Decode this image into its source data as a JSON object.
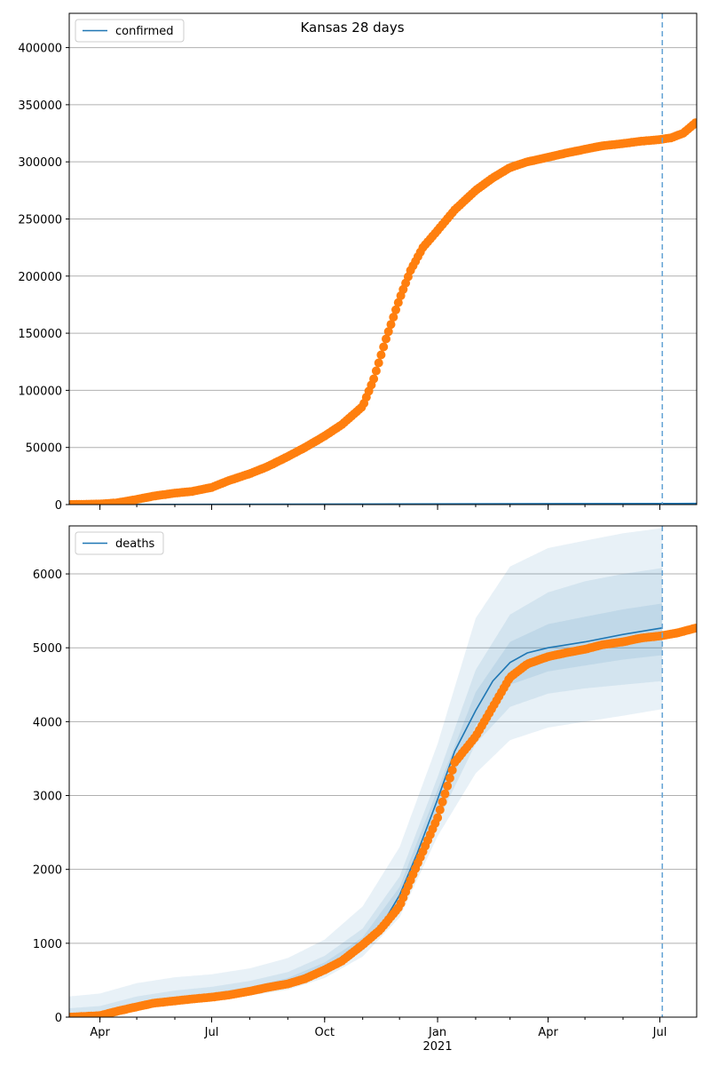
{
  "chart_data": {
    "type": "line",
    "title": "Kansas 28 days",
    "x_axis": {
      "type": "date",
      "range": [
        "2020-03-07",
        "2021-07-31"
      ],
      "tick_labels": [
        {
          "date": "2020-04-01",
          "label": "Apr"
        },
        {
          "date": "2020-07-01",
          "label": "Jul"
        },
        {
          "date": "2020-10-01",
          "label": "Oct"
        },
        {
          "date": "2021-01-01",
          "label": "Jan",
          "sublabel": "2021"
        },
        {
          "date": "2021-04-01",
          "label": "Apr"
        },
        {
          "date": "2021-07-01",
          "label": "Jul"
        }
      ],
      "minor_ticks": "monthly"
    },
    "forecast_start": "2021-07-03",
    "panels": [
      {
        "name": "confirmed-panel",
        "legend": "confirmed",
        "legend_position": "upper-left",
        "ylim": [
          0,
          430000
        ],
        "y_ticks": [
          0,
          50000,
          100000,
          150000,
          200000,
          250000,
          300000,
          350000,
          400000
        ],
        "grid": "y",
        "model": [
          [
            "2020-03-07",
            0
          ],
          [
            "2021-07-31",
            1000
          ]
        ],
        "observed": [
          [
            "2020-03-07",
            0
          ],
          [
            "2020-04-01",
            500
          ],
          [
            "2020-04-15",
            1500
          ],
          [
            "2020-05-01",
            4500
          ],
          [
            "2020-05-15",
            7500
          ],
          [
            "2020-06-01",
            10000
          ],
          [
            "2020-06-15",
            11500
          ],
          [
            "2020-07-01",
            15000
          ],
          [
            "2020-07-15",
            21000
          ],
          [
            "2020-08-01",
            27000
          ],
          [
            "2020-08-15",
            33000
          ],
          [
            "2020-09-01",
            42000
          ],
          [
            "2020-09-15",
            50000
          ],
          [
            "2020-10-01",
            60000
          ],
          [
            "2020-10-15",
            70000
          ],
          [
            "2020-11-01",
            86000
          ],
          [
            "2020-11-10",
            110000
          ],
          [
            "2020-11-20",
            145000
          ],
          [
            "2020-12-01",
            180000
          ],
          [
            "2020-12-10",
            205000
          ],
          [
            "2020-12-20",
            225000
          ],
          [
            "2021-01-01",
            240000
          ],
          [
            "2021-01-15",
            258000
          ],
          [
            "2021-02-01",
            275000
          ],
          [
            "2021-02-15",
            286000
          ],
          [
            "2021-03-01",
            295000
          ],
          [
            "2021-03-15",
            300000
          ],
          [
            "2021-04-01",
            304000
          ],
          [
            "2021-04-15",
            307500
          ],
          [
            "2021-05-01",
            311000
          ],
          [
            "2021-05-15",
            314000
          ],
          [
            "2021-06-01",
            316000
          ],
          [
            "2021-06-15",
            318000
          ],
          [
            "2021-07-01",
            319500
          ],
          [
            "2021-07-10",
            321000
          ],
          [
            "2021-07-20",
            325000
          ],
          [
            "2021-07-31",
            335000
          ]
        ]
      },
      {
        "name": "deaths-panel",
        "legend": "deaths",
        "legend_position": "upper-left",
        "ylim": [
          0,
          6650
        ],
        "y_ticks": [
          0,
          1000,
          2000,
          3000,
          4000,
          5000,
          6000
        ],
        "grid": "y",
        "model": [
          [
            "2020-03-07",
            20
          ],
          [
            "2020-04-01",
            40
          ],
          [
            "2020-04-15",
            100
          ],
          [
            "2020-05-01",
            160
          ],
          [
            "2020-06-01",
            230
          ],
          [
            "2020-07-01",
            290
          ],
          [
            "2020-08-01",
            370
          ],
          [
            "2020-09-01",
            480
          ],
          [
            "2020-10-01",
            680
          ],
          [
            "2020-10-20",
            850
          ],
          [
            "2020-11-01",
            1000
          ],
          [
            "2020-11-15",
            1200
          ],
          [
            "2020-12-01",
            1650
          ],
          [
            "2020-12-15",
            2200
          ],
          [
            "2021-01-01",
            2950
          ],
          [
            "2021-01-15",
            3600
          ],
          [
            "2021-02-01",
            4150
          ],
          [
            "2021-02-15",
            4550
          ],
          [
            "2021-03-01",
            4800
          ],
          [
            "2021-03-15",
            4930
          ],
          [
            "2021-04-01",
            5000
          ],
          [
            "2021-05-01",
            5080
          ],
          [
            "2021-06-01",
            5180
          ],
          [
            "2021-07-03",
            5270
          ]
        ],
        "bands": [
          {
            "level": "outer",
            "lower": [
              [
                "2020-03-07",
                0
              ],
              [
                "2020-05-01",
                110
              ],
              [
                "2020-07-01",
                220
              ],
              [
                "2020-09-01",
                370
              ],
              [
                "2020-10-01",
                530
              ],
              [
                "2020-11-01",
                820
              ],
              [
                "2020-12-01",
                1350
              ],
              [
                "2021-01-01",
                2450
              ],
              [
                "2021-02-01",
                3300
              ],
              [
                "2021-03-01",
                3750
              ],
              [
                "2021-04-01",
                3920
              ],
              [
                "2021-05-01",
                4000
              ],
              [
                "2021-06-01",
                4080
              ],
              [
                "2021-07-03",
                4170
              ]
            ],
            "upper": [
              [
                "2020-03-07",
                280
              ],
              [
                "2020-04-01",
                320
              ],
              [
                "2020-05-01",
                460
              ],
              [
                "2020-06-01",
                540
              ],
              [
                "2020-07-01",
                580
              ],
              [
                "2020-08-01",
                660
              ],
              [
                "2020-09-01",
                800
              ],
              [
                "2020-10-01",
                1050
              ],
              [
                "2020-11-01",
                1500
              ],
              [
                "2020-12-01",
                2300
              ],
              [
                "2021-01-01",
                3700
              ],
              [
                "2021-02-01",
                5400
              ],
              [
                "2021-03-01",
                6100
              ],
              [
                "2021-04-01",
                6350
              ],
              [
                "2021-05-01",
                6450
              ],
              [
                "2021-06-01",
                6550
              ],
              [
                "2021-07-03",
                6620
              ]
            ]
          },
          {
            "level": "middle",
            "lower": [
              [
                "2020-03-07",
                10
              ],
              [
                "2020-05-01",
                130
              ],
              [
                "2020-07-01",
                250
              ],
              [
                "2020-09-01",
                420
              ],
              [
                "2020-10-01",
                600
              ],
              [
                "2020-11-01",
                900
              ],
              [
                "2020-12-01",
                1480
              ],
              [
                "2021-01-01",
                2650
              ],
              [
                "2021-02-01",
                3700
              ],
              [
                "2021-03-01",
                4200
              ],
              [
                "2021-04-01",
                4380
              ],
              [
                "2021-05-01",
                4450
              ],
              [
                "2021-06-01",
                4500
              ],
              [
                "2021-07-03",
                4550
              ]
            ],
            "upper": [
              [
                "2020-03-07",
                120
              ],
              [
                "2020-04-01",
                150
              ],
              [
                "2020-05-01",
                280
              ],
              [
                "2020-06-01",
                360
              ],
              [
                "2020-07-01",
                410
              ],
              [
                "2020-08-01",
                490
              ],
              [
                "2020-09-01",
                610
              ],
              [
                "2020-10-01",
                830
              ],
              [
                "2020-11-01",
                1200
              ],
              [
                "2020-12-01",
                1900
              ],
              [
                "2021-01-01",
                3250
              ],
              [
                "2021-02-01",
                4700
              ],
              [
                "2021-03-01",
                5450
              ],
              [
                "2021-04-01",
                5750
              ],
              [
                "2021-05-01",
                5900
              ],
              [
                "2021-06-01",
                6000
              ],
              [
                "2021-07-03",
                6080
              ]
            ]
          },
          {
            "level": "inner",
            "lower": [
              [
                "2020-03-07",
                15
              ],
              [
                "2020-05-01",
                145
              ],
              [
                "2020-07-01",
                270
              ],
              [
                "2020-09-01",
                450
              ],
              [
                "2020-10-01",
                640
              ],
              [
                "2020-11-01",
                950
              ],
              [
                "2020-12-01",
                1560
              ],
              [
                "2021-01-01",
                2800
              ],
              [
                "2021-02-01",
                3950
              ],
              [
                "2021-03-01",
                4500
              ],
              [
                "2021-04-01",
                4680
              ],
              [
                "2021-05-01",
                4760
              ],
              [
                "2021-06-01",
                4840
              ],
              [
                "2021-07-03",
                4900
              ]
            ],
            "upper": [
              [
                "2020-03-07",
                40
              ],
              [
                "2020-04-01",
                70
              ],
              [
                "2020-05-01",
                190
              ],
              [
                "2020-06-01",
                270
              ],
              [
                "2020-07-01",
                330
              ],
              [
                "2020-08-01",
                410
              ],
              [
                "2020-09-01",
                530
              ],
              [
                "2020-10-01",
                740
              ],
              [
                "2020-11-01",
                1080
              ],
              [
                "2020-12-01",
                1760
              ],
              [
                "2021-01-01",
                3080
              ],
              [
                "2021-02-01",
                4400
              ],
              [
                "2021-03-01",
                5080
              ],
              [
                "2021-04-01",
                5320
              ],
              [
                "2021-05-01",
                5420
              ],
              [
                "2021-06-01",
                5520
              ],
              [
                "2021-07-03",
                5600
              ]
            ]
          }
        ],
        "observed": [
          [
            "2020-03-07",
            0
          ],
          [
            "2020-04-01",
            20
          ],
          [
            "2020-04-15",
            80
          ],
          [
            "2020-05-01",
            140
          ],
          [
            "2020-05-15",
            190
          ],
          [
            "2020-06-01",
            220
          ],
          [
            "2020-06-15",
            245
          ],
          [
            "2020-07-01",
            270
          ],
          [
            "2020-07-15",
            300
          ],
          [
            "2020-08-01",
            350
          ],
          [
            "2020-08-15",
            400
          ],
          [
            "2020-09-01",
            450
          ],
          [
            "2020-09-15",
            520
          ],
          [
            "2020-10-01",
            640
          ],
          [
            "2020-10-15",
            760
          ],
          [
            "2020-11-01",
            980
          ],
          [
            "2020-11-15",
            1180
          ],
          [
            "2020-12-01",
            1500
          ],
          [
            "2020-12-15",
            2050
          ],
          [
            "2021-01-01",
            2700
          ],
          [
            "2021-01-15",
            3450
          ],
          [
            "2021-02-01",
            3800
          ],
          [
            "2021-02-15",
            4200
          ],
          [
            "2021-03-01",
            4600
          ],
          [
            "2021-03-15",
            4780
          ],
          [
            "2021-04-01",
            4880
          ],
          [
            "2021-04-15",
            4930
          ],
          [
            "2021-05-01",
            4980
          ],
          [
            "2021-05-15",
            5040
          ],
          [
            "2021-06-01",
            5080
          ],
          [
            "2021-06-15",
            5130
          ],
          [
            "2021-07-01",
            5160
          ],
          [
            "2021-07-15",
            5200
          ],
          [
            "2021-07-31",
            5270
          ]
        ]
      }
    ],
    "colors": {
      "model_line": "#1f77b4",
      "observed_points": "#ff7f0e",
      "band": "#1f77b4",
      "forecast_line": "#6aa6d6",
      "grid": "#b0b0b0"
    }
  }
}
